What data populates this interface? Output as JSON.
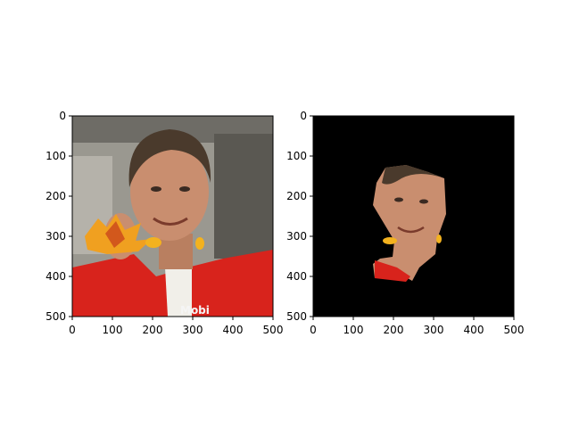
{
  "figure": {
    "background": "#ffffff"
  },
  "chart_data": [
    {
      "type": "heatmap",
      "title": "",
      "xlabel": "",
      "ylabel": "",
      "xlim": [
        0,
        500
      ],
      "ylim": [
        500,
        0
      ],
      "x_ticks": [
        0,
        100,
        200,
        300,
        400,
        500
      ],
      "y_ticks": [
        0,
        100,
        200,
        300,
        400,
        500
      ],
      "x_tick_labels": [
        "0",
        "100",
        "200",
        "300",
        "400",
        "500"
      ],
      "y_tick_labels": [
        "0",
        "100",
        "200",
        "300",
        "400",
        "500"
      ],
      "grid": false,
      "image_content": "photo of a smiling man in a red racing suit holding up orange autumn leaves",
      "colors": {
        "background": "#8f8f88",
        "suit": "#d8231c",
        "leaves": "#f0a020",
        "skin": "#c98e6f",
        "hair": "#4a3a2c"
      }
    },
    {
      "type": "heatmap",
      "title": "",
      "xlabel": "",
      "ylabel": "",
      "xlim": [
        0,
        500
      ],
      "ylim": [
        500,
        0
      ],
      "x_ticks": [
        0,
        100,
        200,
        300,
        400,
        500
      ],
      "y_ticks": [
        0,
        100,
        200,
        300,
        400,
        500
      ],
      "x_tick_labels": [
        "0",
        "100",
        "200",
        "300",
        "400",
        "500"
      ],
      "y_tick_labels": [
        "0",
        "100",
        "200",
        "300",
        "400",
        "500"
      ],
      "grid": false,
      "image_content": "segmentation mask: face region of the same photo shown on a black background",
      "colors": {
        "background": "#000000",
        "skin": "#c98e6f",
        "hair": "#4a3a2c",
        "suit": "#d8231c",
        "leaves": "#f0a020"
      }
    }
  ]
}
